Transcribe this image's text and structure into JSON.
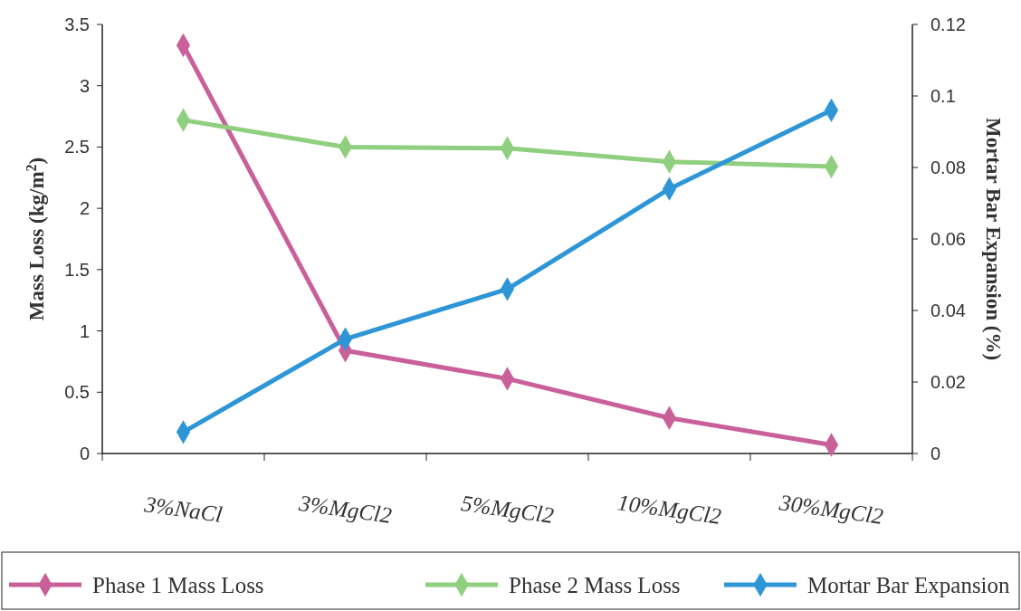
{
  "chart_data": {
    "type": "line",
    "categories": [
      "3%NaCl",
      "3%MgCl2",
      "5%MgCl2",
      "10%MgCl2",
      "30%MgCl2"
    ],
    "ylabel": "Mass Loss (kg/m$^{2}$)",
    "y2label": "Mortar Bar Expansion (%)",
    "ylim": [
      0,
      3.5
    ],
    "yticks": [
      0,
      0.5,
      1,
      1.5,
      2,
      2.5,
      3,
      3.5
    ],
    "y2lim": [
      0,
      0.12
    ],
    "y2ticks": [
      0,
      0.02,
      0.04,
      0.06,
      0.08,
      0.1,
      0.12
    ],
    "series": [
      {
        "name": "Phase 1 Mass Loss",
        "color": "#c9609a",
        "values": [
          3.33,
          0.84,
          0.61,
          0.29,
          0.07
        ]
      },
      {
        "name": "Phase 2 Mass Loss",
        "color": "#8fcf7f",
        "values": [
          2.72,
          2.5,
          2.49,
          2.38,
          2.34
        ]
      },
      {
        "name": "Mortar Bar Expansion",
        "color": "#2e96d6",
        "axis": "y2",
        "values": [
          0.006,
          0.032,
          0.046,
          0.074,
          0.096
        ]
      }
    ],
    "marker": "diamond",
    "legend": "bottom",
    "grid": false
  }
}
